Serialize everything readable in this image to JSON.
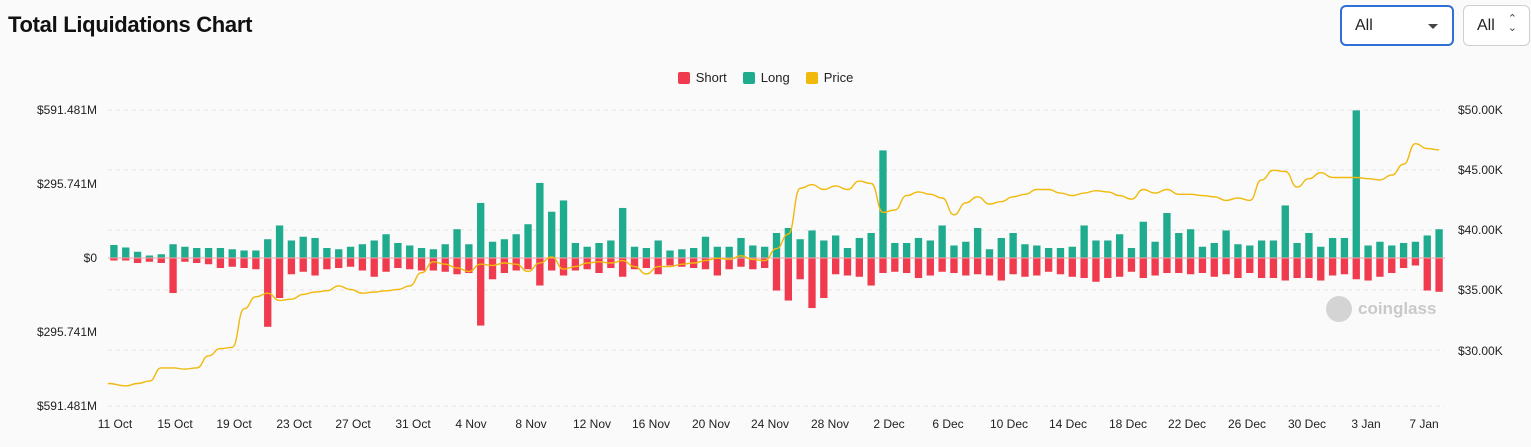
{
  "header": {
    "title": "Total Liquidations Chart",
    "select_coin": "All",
    "select_range": "All"
  },
  "legend": [
    {
      "label": "Short",
      "color": "#f03b4f"
    },
    {
      "label": "Long",
      "color": "#1fab8e"
    },
    {
      "label": "Price",
      "color": "#f0b90b"
    }
  ],
  "watermark": "coinglass",
  "chart_data": {
    "type": "bar",
    "title": "Total Liquidations Chart",
    "x_tick_labels": [
      "11 Oct",
      "15 Oct",
      "19 Oct",
      "23 Oct",
      "27 Oct",
      "31 Oct",
      "4 Nov",
      "8 Nov",
      "12 Nov",
      "16 Nov",
      "20 Nov",
      "24 Nov",
      "28 Nov",
      "2 Dec",
      "6 Dec",
      "10 Dec",
      "14 Dec",
      "18 Dec",
      "22 Dec",
      "26 Dec",
      "30 Dec",
      "3 Jan",
      "7 Jan"
    ],
    "y_left_ticks": [
      "$591.481M",
      "$295.741M",
      "$0",
      "$295.741M",
      "$591.481M"
    ],
    "y_left_range": [
      -591.481,
      591.481
    ],
    "y_right_ticks": [
      "$50.00K",
      "$45.00K",
      "$40.00K",
      "$35.00K",
      "$30.00K"
    ],
    "y_right_range": [
      25000,
      50000
    ],
    "grid": true,
    "legend_position": "top-center",
    "series": [
      {
        "name": "Long",
        "color": "#1fab8e",
        "values": [
          52,
          42,
          25,
          10,
          15,
          55,
          45,
          40,
          40,
          40,
          35,
          30,
          30,
          75,
          130,
          70,
          85,
          80,
          40,
          35,
          45,
          55,
          70,
          95,
          60,
          50,
          40,
          35,
          55,
          115,
          55,
          220,
          65,
          75,
          95,
          135,
          300,
          185,
          230,
          60,
          45,
          60,
          70,
          200,
          45,
          40,
          70,
          30,
          35,
          40,
          85,
          45,
          45,
          80,
          50,
          45,
          100,
          120,
          75,
          110,
          70,
          90,
          40,
          80,
          100,
          430,
          60,
          60,
          80,
          70,
          130,
          50,
          65,
          120,
          35,
          80,
          100,
          55,
          50,
          40,
          40,
          45,
          130,
          70,
          70,
          95,
          40,
          145,
          65,
          180,
          100,
          115,
          45,
          60,
          110,
          55,
          50,
          70,
          70,
          210,
          60,
          100,
          45,
          80,
          80,
          590,
          50,
          65,
          50,
          60,
          65,
          90,
          115
        ]
      },
      {
        "name": "Short",
        "color": "#f03b4f",
        "values": [
          10,
          10,
          20,
          15,
          20,
          140,
          15,
          20,
          25,
          40,
          35,
          40,
          45,
          275,
          160,
          65,
          55,
          70,
          45,
          40,
          35,
          50,
          75,
          55,
          40,
          45,
          50,
          50,
          55,
          65,
          60,
          270,
          85,
          60,
          50,
          45,
          110,
          50,
          70,
          50,
          45,
          60,
          40,
          75,
          45,
          40,
          65,
          30,
          35,
          40,
          45,
          70,
          45,
          35,
          45,
          40,
          130,
          170,
          85,
          200,
          160,
          65,
          70,
          75,
          110,
          60,
          55,
          60,
          80,
          70,
          55,
          60,
          70,
          65,
          70,
          90,
          65,
          75,
          70,
          55,
          65,
          75,
          80,
          95,
          80,
          75,
          55,
          80,
          70,
          60,
          60,
          65,
          60,
          75,
          65,
          80,
          60,
          80,
          80,
          90,
          80,
          80,
          90,
          70,
          65,
          85,
          90,
          75,
          60,
          40,
          30,
          130,
          135
        ]
      },
      {
        "name": "Price",
        "color": "#f0b90b",
        "values": [
          27300,
          27100,
          27300,
          27500,
          28600,
          28600,
          28500,
          28600,
          29600,
          30200,
          30300,
          33500,
          34500,
          34800,
          34200,
          34300,
          34700,
          34900,
          35000,
          35400,
          35100,
          34800,
          34900,
          35000,
          35100,
          35400,
          36500,
          37400,
          37200,
          36900,
          36600,
          37200,
          37100,
          37300,
          37200,
          36600,
          37300,
          37800,
          36800,
          37000,
          37300,
          37400,
          37300,
          37500,
          37000,
          36400,
          37000,
          37000,
          37200,
          37300,
          37500,
          37700,
          37600,
          37900,
          37600,
          37500,
          38500,
          39700,
          43500,
          43800,
          43400,
          43700,
          43400,
          44100,
          43900,
          41500,
          41700,
          42900,
          43200,
          43000,
          42700,
          41300,
          42300,
          42800,
          42200,
          42400,
          42800,
          43000,
          43400,
          43400,
          43100,
          42900,
          43100,
          43300,
          43200,
          42900,
          42600,
          43400,
          43100,
          43400,
          43000,
          43000,
          42900,
          42800,
          42500,
          42700,
          42500,
          44200,
          45000,
          44900,
          43600,
          44300,
          44800,
          44400,
          44400,
          44400,
          44300,
          44200,
          44600,
          45500,
          47200,
          46800,
          46700
        ],
        "axis": "right"
      }
    ]
  }
}
